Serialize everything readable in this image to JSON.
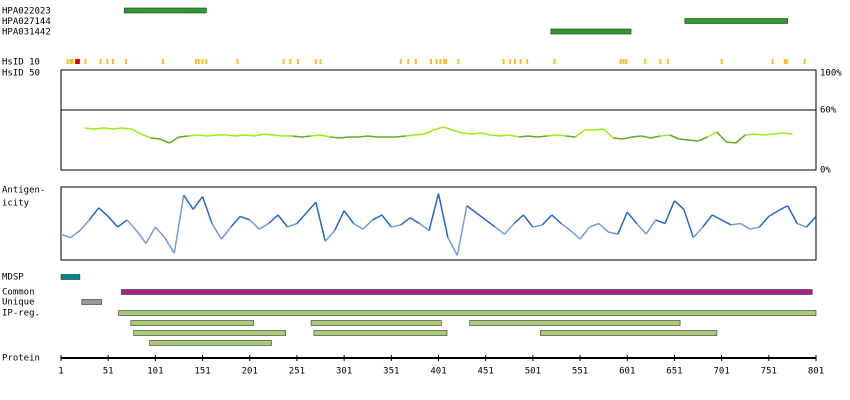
{
  "protein_axis": {
    "label": "Protein",
    "xlim": [
      1,
      801
    ],
    "ticks": [
      1,
      51,
      101,
      151,
      201,
      251,
      301,
      351,
      401,
      451,
      501,
      551,
      601,
      651,
      701,
      751,
      801
    ]
  },
  "antibodies": [
    {
      "name": "HPA022023",
      "start": 68,
      "end": 155
    },
    {
      "name": "HPA027144",
      "start": 662,
      "end": 771
    },
    {
      "name": "HPA031442",
      "start": 520,
      "end": 605
    }
  ],
  "antibody_color": "#339933",
  "hsid10": {
    "label": "HsID 10",
    "color": "#ffbb22",
    "positions": [
      8,
      11,
      13,
      27,
      43,
      50,
      56,
      70,
      109,
      144,
      147,
      151,
      155,
      188,
      237,
      244,
      252,
      271,
      276,
      361,
      369,
      377,
      393,
      399,
      403,
      407,
      409,
      422,
      470,
      477,
      482,
      488,
      495,
      524,
      594,
      597,
      600,
      620,
      636,
      644,
      701,
      755,
      768,
      770,
      789
    ],
    "highlight_color": "#dd0000",
    "highlight": [
      [
        16,
        21
      ]
    ]
  },
  "hsid50": {
    "label": "HsID 50",
    "ylim": [
      0,
      100
    ],
    "ticks": [
      {
        "value": 100,
        "label": "100%"
      },
      {
        "value": 60,
        "label": "60%"
      },
      {
        "value": 0,
        "label": "0%"
      }
    ],
    "threshold": 34,
    "colors": [
      "#99ee11",
      "#66aa22"
    ],
    "x": [
      26,
      36,
      46,
      56,
      66,
      76,
      86,
      96,
      106,
      116,
      126,
      136,
      146,
      156,
      166,
      176,
      186,
      196,
      206,
      216,
      226,
      236,
      246,
      256,
      266,
      276,
      286,
      296,
      306,
      316,
      326,
      336,
      346,
      356,
      366,
      376,
      386,
      396,
      406,
      416,
      426,
      436,
      446,
      456,
      466,
      476,
      486,
      496,
      506,
      516,
      526,
      536,
      546,
      556,
      566,
      576,
      586,
      596,
      606,
      616,
      626,
      636,
      646,
      656,
      666,
      676,
      686,
      696,
      706,
      716,
      726,
      736,
      746,
      756,
      766,
      776
    ],
    "values": [
      42,
      41,
      42,
      41,
      42,
      41,
      36,
      32,
      31,
      27,
      33,
      34,
      35,
      34,
      35,
      35,
      34,
      35,
      34,
      36,
      35,
      34,
      34,
      33,
      34,
      35,
      33,
      32,
      33,
      33,
      34,
      33,
      33,
      33,
      34,
      35,
      36,
      40,
      43,
      40,
      37,
      36,
      37,
      35,
      34,
      35,
      33,
      34,
      33,
      34,
      35,
      34,
      33,
      40,
      40,
      41,
      32,
      31,
      33,
      34,
      32,
      34,
      35,
      31,
      30,
      29,
      33,
      38,
      28,
      27,
      35,
      36,
      35,
      36,
      37,
      36
    ]
  },
  "antigenicity": {
    "label_lines": [
      "Antigen-",
      "icity"
    ],
    "ylim": [
      0,
      100
    ],
    "threshold": 50,
    "colors": [
      "#2266cc",
      "#7799dd"
    ],
    "x": [
      1,
      11,
      21,
      31,
      41,
      51,
      61,
      71,
      81,
      91,
      101,
      111,
      121,
      131,
      141,
      151,
      161,
      171,
      181,
      191,
      201,
      211,
      221,
      231,
      241,
      251,
      261,
      271,
      281,
      291,
      301,
      311,
      321,
      331,
      341,
      351,
      361,
      371,
      381,
      391,
      401,
      411,
      421,
      431,
      441,
      451,
      461,
      471,
      481,
      491,
      501,
      511,
      521,
      531,
      541,
      551,
      561,
      571,
      581,
      591,
      601,
      611,
      621,
      631,
      641,
      651,
      661,
      671,
      681,
      691,
      701,
      711,
      721,
      731,
      741,
      751,
      761,
      771,
      781,
      791,
      801
    ],
    "values": [
      35,
      30,
      40,
      55,
      72,
      60,
      45,
      55,
      40,
      22,
      45,
      30,
      8,
      90,
      70,
      88,
      50,
      28,
      45,
      60,
      55,
      42,
      50,
      62,
      45,
      50,
      65,
      80,
      25,
      40,
      68,
      50,
      42,
      55,
      62,
      45,
      48,
      58,
      50,
      40,
      92,
      30,
      5,
      75,
      65,
      55,
      45,
      35,
      50,
      62,
      45,
      48,
      62,
      50,
      40,
      28,
      45,
      50,
      38,
      35,
      66,
      50,
      35,
      55,
      50,
      82,
      70,
      30,
      45,
      62,
      55,
      48,
      50,
      42,
      45,
      60,
      68,
      75,
      50,
      45,
      60
    ]
  },
  "tracks": [
    {
      "label": "MDSP",
      "color": "#008888",
      "rows": [
        [
          [
            1,
            21
          ]
        ]
      ]
    },
    {
      "label": "Common",
      "color": "#aa2288",
      "rows": [
        [
          [
            65,
            797
          ]
        ]
      ]
    },
    {
      "label": "Unique",
      "color": "#999999",
      "rows": [
        [
          [
            23,
            44
          ]
        ]
      ]
    },
    {
      "label": "IP-reg.",
      "color": "#aacc77",
      "rows": [
        [
          [
            62,
            801
          ]
        ],
        [
          [
            75,
            205
          ],
          [
            266,
            404
          ],
          [
            434,
            657
          ]
        ],
        [
          [
            78,
            239
          ],
          [
            269,
            410
          ],
          [
            509,
            696
          ]
        ],
        [
          [
            95,
            224
          ]
        ]
      ]
    }
  ]
}
